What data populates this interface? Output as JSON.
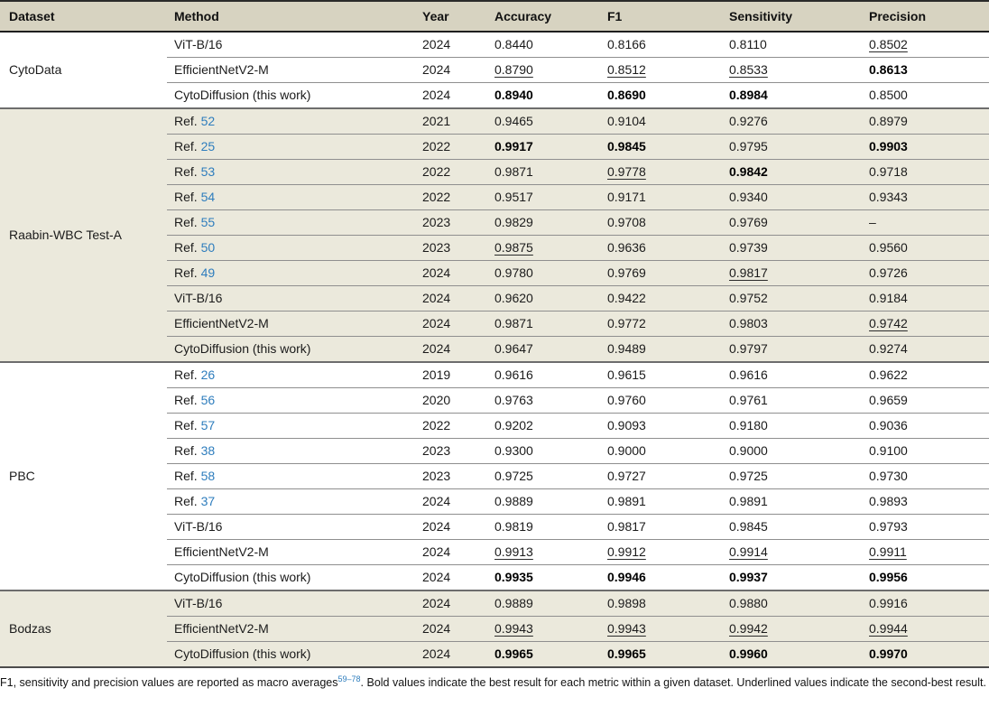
{
  "header": {
    "columns": [
      "Dataset",
      "Method",
      "Year",
      "Accuracy",
      "F1",
      "Sensitivity",
      "Precision"
    ]
  },
  "colors": {
    "header_bg": "#d7d3c1",
    "section_tint_bg": "#ebe9dc",
    "link_blue": "#2e7dbd",
    "row_rule": "#8f8f8f",
    "section_rule": "#6d6d6d"
  },
  "sections": [
    {
      "dataset": "CytoData",
      "tinted": false,
      "rows": [
        {
          "method": {
            "text": "ViT-B/16"
          },
          "year": "2024",
          "metrics": [
            {
              "v": "0.8440",
              "s": ""
            },
            {
              "v": "0.8166",
              "s": ""
            },
            {
              "v": "0.8110",
              "s": ""
            },
            {
              "v": "0.8502",
              "s": "u"
            }
          ]
        },
        {
          "method": {
            "text": "EfficientNetV2-M"
          },
          "year": "2024",
          "metrics": [
            {
              "v": "0.8790",
              "s": "u"
            },
            {
              "v": "0.8512",
              "s": "u"
            },
            {
              "v": "0.8533",
              "s": "u"
            },
            {
              "v": "0.8613",
              "s": "b"
            }
          ]
        },
        {
          "method": {
            "text": "CytoDiffusion (this work)"
          },
          "year": "2024",
          "metrics": [
            {
              "v": "0.8940",
              "s": "b"
            },
            {
              "v": "0.8690",
              "s": "b"
            },
            {
              "v": "0.8984",
              "s": "b"
            },
            {
              "v": "0.8500",
              "s": ""
            }
          ]
        }
      ]
    },
    {
      "dataset": "Raabin-WBC Test-A",
      "tinted": true,
      "rows": [
        {
          "method": {
            "text": "Ref.",
            "ref": "52"
          },
          "year": "2021",
          "metrics": [
            {
              "v": "0.9465",
              "s": ""
            },
            {
              "v": "0.9104",
              "s": ""
            },
            {
              "v": "0.9276",
              "s": ""
            },
            {
              "v": "0.8979",
              "s": ""
            }
          ]
        },
        {
          "method": {
            "text": "Ref.",
            "ref": "25"
          },
          "year": "2022",
          "metrics": [
            {
              "v": "0.9917",
              "s": "b"
            },
            {
              "v": "0.9845",
              "s": "b"
            },
            {
              "v": "0.9795",
              "s": ""
            },
            {
              "v": "0.9903",
              "s": "b"
            }
          ]
        },
        {
          "method": {
            "text": "Ref.",
            "ref": "53"
          },
          "year": "2022",
          "metrics": [
            {
              "v": "0.9871",
              "s": ""
            },
            {
              "v": "0.9778",
              "s": "u"
            },
            {
              "v": "0.9842",
              "s": "b"
            },
            {
              "v": "0.9718",
              "s": ""
            }
          ]
        },
        {
          "method": {
            "text": "Ref.",
            "ref": "54"
          },
          "year": "2022",
          "metrics": [
            {
              "v": "0.9517",
              "s": ""
            },
            {
              "v": "0.9171",
              "s": ""
            },
            {
              "v": "0.9340",
              "s": ""
            },
            {
              "v": "0.9343",
              "s": ""
            }
          ]
        },
        {
          "method": {
            "text": "Ref.",
            "ref": "55"
          },
          "year": "2023",
          "metrics": [
            {
              "v": "0.9829",
              "s": ""
            },
            {
              "v": "0.9708",
              "s": ""
            },
            {
              "v": "0.9769",
              "s": ""
            },
            {
              "v": "–",
              "s": ""
            }
          ]
        },
        {
          "method": {
            "text": "Ref.",
            "ref": "50"
          },
          "year": "2023",
          "metrics": [
            {
              "v": "0.9875",
              "s": "u"
            },
            {
              "v": "0.9636",
              "s": ""
            },
            {
              "v": "0.9739",
              "s": ""
            },
            {
              "v": "0.9560",
              "s": ""
            }
          ]
        },
        {
          "method": {
            "text": "Ref.",
            "ref": "49"
          },
          "year": "2024",
          "metrics": [
            {
              "v": "0.9780",
              "s": ""
            },
            {
              "v": "0.9769",
              "s": ""
            },
            {
              "v": "0.9817",
              "s": "u"
            },
            {
              "v": "0.9726",
              "s": ""
            }
          ]
        },
        {
          "method": {
            "text": "ViT-B/16"
          },
          "year": "2024",
          "metrics": [
            {
              "v": "0.9620",
              "s": ""
            },
            {
              "v": "0.9422",
              "s": ""
            },
            {
              "v": "0.9752",
              "s": ""
            },
            {
              "v": "0.9184",
              "s": ""
            }
          ]
        },
        {
          "method": {
            "text": "EfficientNetV2-M"
          },
          "year": "2024",
          "metrics": [
            {
              "v": "0.9871",
              "s": ""
            },
            {
              "v": "0.9772",
              "s": ""
            },
            {
              "v": "0.9803",
              "s": ""
            },
            {
              "v": "0.9742",
              "s": "u"
            }
          ]
        },
        {
          "method": {
            "text": "CytoDiffusion (this work)"
          },
          "year": "2024",
          "metrics": [
            {
              "v": "0.9647",
              "s": ""
            },
            {
              "v": "0.9489",
              "s": ""
            },
            {
              "v": "0.9797",
              "s": ""
            },
            {
              "v": "0.9274",
              "s": ""
            }
          ]
        }
      ]
    },
    {
      "dataset": "PBC",
      "tinted": false,
      "rows": [
        {
          "method": {
            "text": "Ref.",
            "ref": "26"
          },
          "year": "2019",
          "metrics": [
            {
              "v": "0.9616",
              "s": ""
            },
            {
              "v": "0.9615",
              "s": ""
            },
            {
              "v": "0.9616",
              "s": ""
            },
            {
              "v": "0.9622",
              "s": ""
            }
          ]
        },
        {
          "method": {
            "text": "Ref.",
            "ref": "56"
          },
          "year": "2020",
          "metrics": [
            {
              "v": "0.9763",
              "s": ""
            },
            {
              "v": "0.9760",
              "s": ""
            },
            {
              "v": "0.9761",
              "s": ""
            },
            {
              "v": "0.9659",
              "s": ""
            }
          ]
        },
        {
          "method": {
            "text": "Ref.",
            "ref": "57"
          },
          "year": "2022",
          "metrics": [
            {
              "v": "0.9202",
              "s": ""
            },
            {
              "v": "0.9093",
              "s": ""
            },
            {
              "v": "0.9180",
              "s": ""
            },
            {
              "v": "0.9036",
              "s": ""
            }
          ]
        },
        {
          "method": {
            "text": "Ref.",
            "ref": "38"
          },
          "year": "2023",
          "metrics": [
            {
              "v": "0.9300",
              "s": ""
            },
            {
              "v": "0.9000",
              "s": ""
            },
            {
              "v": "0.9000",
              "s": ""
            },
            {
              "v": "0.9100",
              "s": ""
            }
          ]
        },
        {
          "method": {
            "text": "Ref.",
            "ref": "58"
          },
          "year": "2023",
          "metrics": [
            {
              "v": "0.9725",
              "s": ""
            },
            {
              "v": "0.9727",
              "s": ""
            },
            {
              "v": "0.9725",
              "s": ""
            },
            {
              "v": "0.9730",
              "s": ""
            }
          ]
        },
        {
          "method": {
            "text": "Ref.",
            "ref": "37"
          },
          "year": "2024",
          "metrics": [
            {
              "v": "0.9889",
              "s": ""
            },
            {
              "v": "0.9891",
              "s": ""
            },
            {
              "v": "0.9891",
              "s": ""
            },
            {
              "v": "0.9893",
              "s": ""
            }
          ]
        },
        {
          "method": {
            "text": "ViT-B/16"
          },
          "year": "2024",
          "metrics": [
            {
              "v": "0.9819",
              "s": ""
            },
            {
              "v": "0.9817",
              "s": ""
            },
            {
              "v": "0.9845",
              "s": ""
            },
            {
              "v": "0.9793",
              "s": ""
            }
          ]
        },
        {
          "method": {
            "text": "EfficientNetV2-M"
          },
          "year": "2024",
          "metrics": [
            {
              "v": "0.9913",
              "s": "u"
            },
            {
              "v": "0.9912",
              "s": "u"
            },
            {
              "v": "0.9914",
              "s": "u"
            },
            {
              "v": "0.9911",
              "s": "u"
            }
          ]
        },
        {
          "method": {
            "text": "CytoDiffusion (this work)"
          },
          "year": "2024",
          "metrics": [
            {
              "v": "0.9935",
              "s": "b"
            },
            {
              "v": "0.9946",
              "s": "b"
            },
            {
              "v": "0.9937",
              "s": "b"
            },
            {
              "v": "0.9956",
              "s": "b"
            }
          ]
        }
      ]
    },
    {
      "dataset": "Bodzas",
      "tinted": true,
      "rows": [
        {
          "method": {
            "text": "ViT-B/16"
          },
          "year": "2024",
          "metrics": [
            {
              "v": "0.9889",
              "s": ""
            },
            {
              "v": "0.9898",
              "s": ""
            },
            {
              "v": "0.9880",
              "s": ""
            },
            {
              "v": "0.9916",
              "s": ""
            }
          ]
        },
        {
          "method": {
            "text": "EfficientNetV2-M"
          },
          "year": "2024",
          "metrics": [
            {
              "v": "0.9943",
              "s": "u"
            },
            {
              "v": "0.9943",
              "s": "u"
            },
            {
              "v": "0.9942",
              "s": "u"
            },
            {
              "v": "0.9944",
              "s": "u"
            }
          ]
        },
        {
          "method": {
            "text": "CytoDiffusion (this work)"
          },
          "year": "2024",
          "metrics": [
            {
              "v": "0.9965",
              "s": "b"
            },
            {
              "v": "0.9965",
              "s": "b"
            },
            {
              "v": "0.9960",
              "s": "b"
            },
            {
              "v": "0.9970",
              "s": "b"
            }
          ]
        }
      ]
    }
  ],
  "footnote": {
    "text_before": "F1, sensitivity and precision values are reported as macro averages",
    "sup": "59–78",
    "text_after": ". Bold values indicate the best result for each metric within a given dataset. Underlined values indicate the second-best result."
  }
}
